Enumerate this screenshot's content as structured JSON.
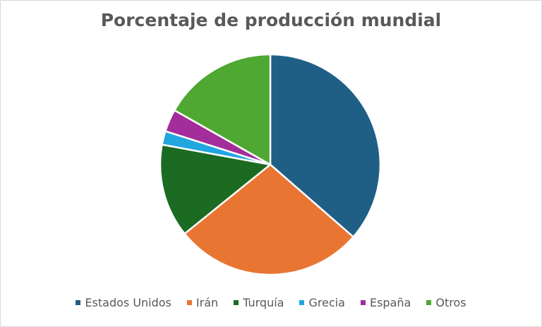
{
  "chart_data": {
    "type": "pie",
    "title": "Porcentaje de producción mundial",
    "legend_position": "bottom",
    "categories": [
      "Estados Unidos",
      "Irán",
      "Turquía",
      "Grecia",
      "España",
      "Otros"
    ],
    "values": [
      36.4,
      27.8,
      13.7,
      2.0,
      3.3,
      16.8
    ],
    "colors": [
      "#1f5f86",
      "#e97533",
      "#1b6b22",
      "#22a6e0",
      "#a32d9a",
      "#4ea832"
    ],
    "start_angle_deg": 0,
    "direction": "clockwise"
  }
}
